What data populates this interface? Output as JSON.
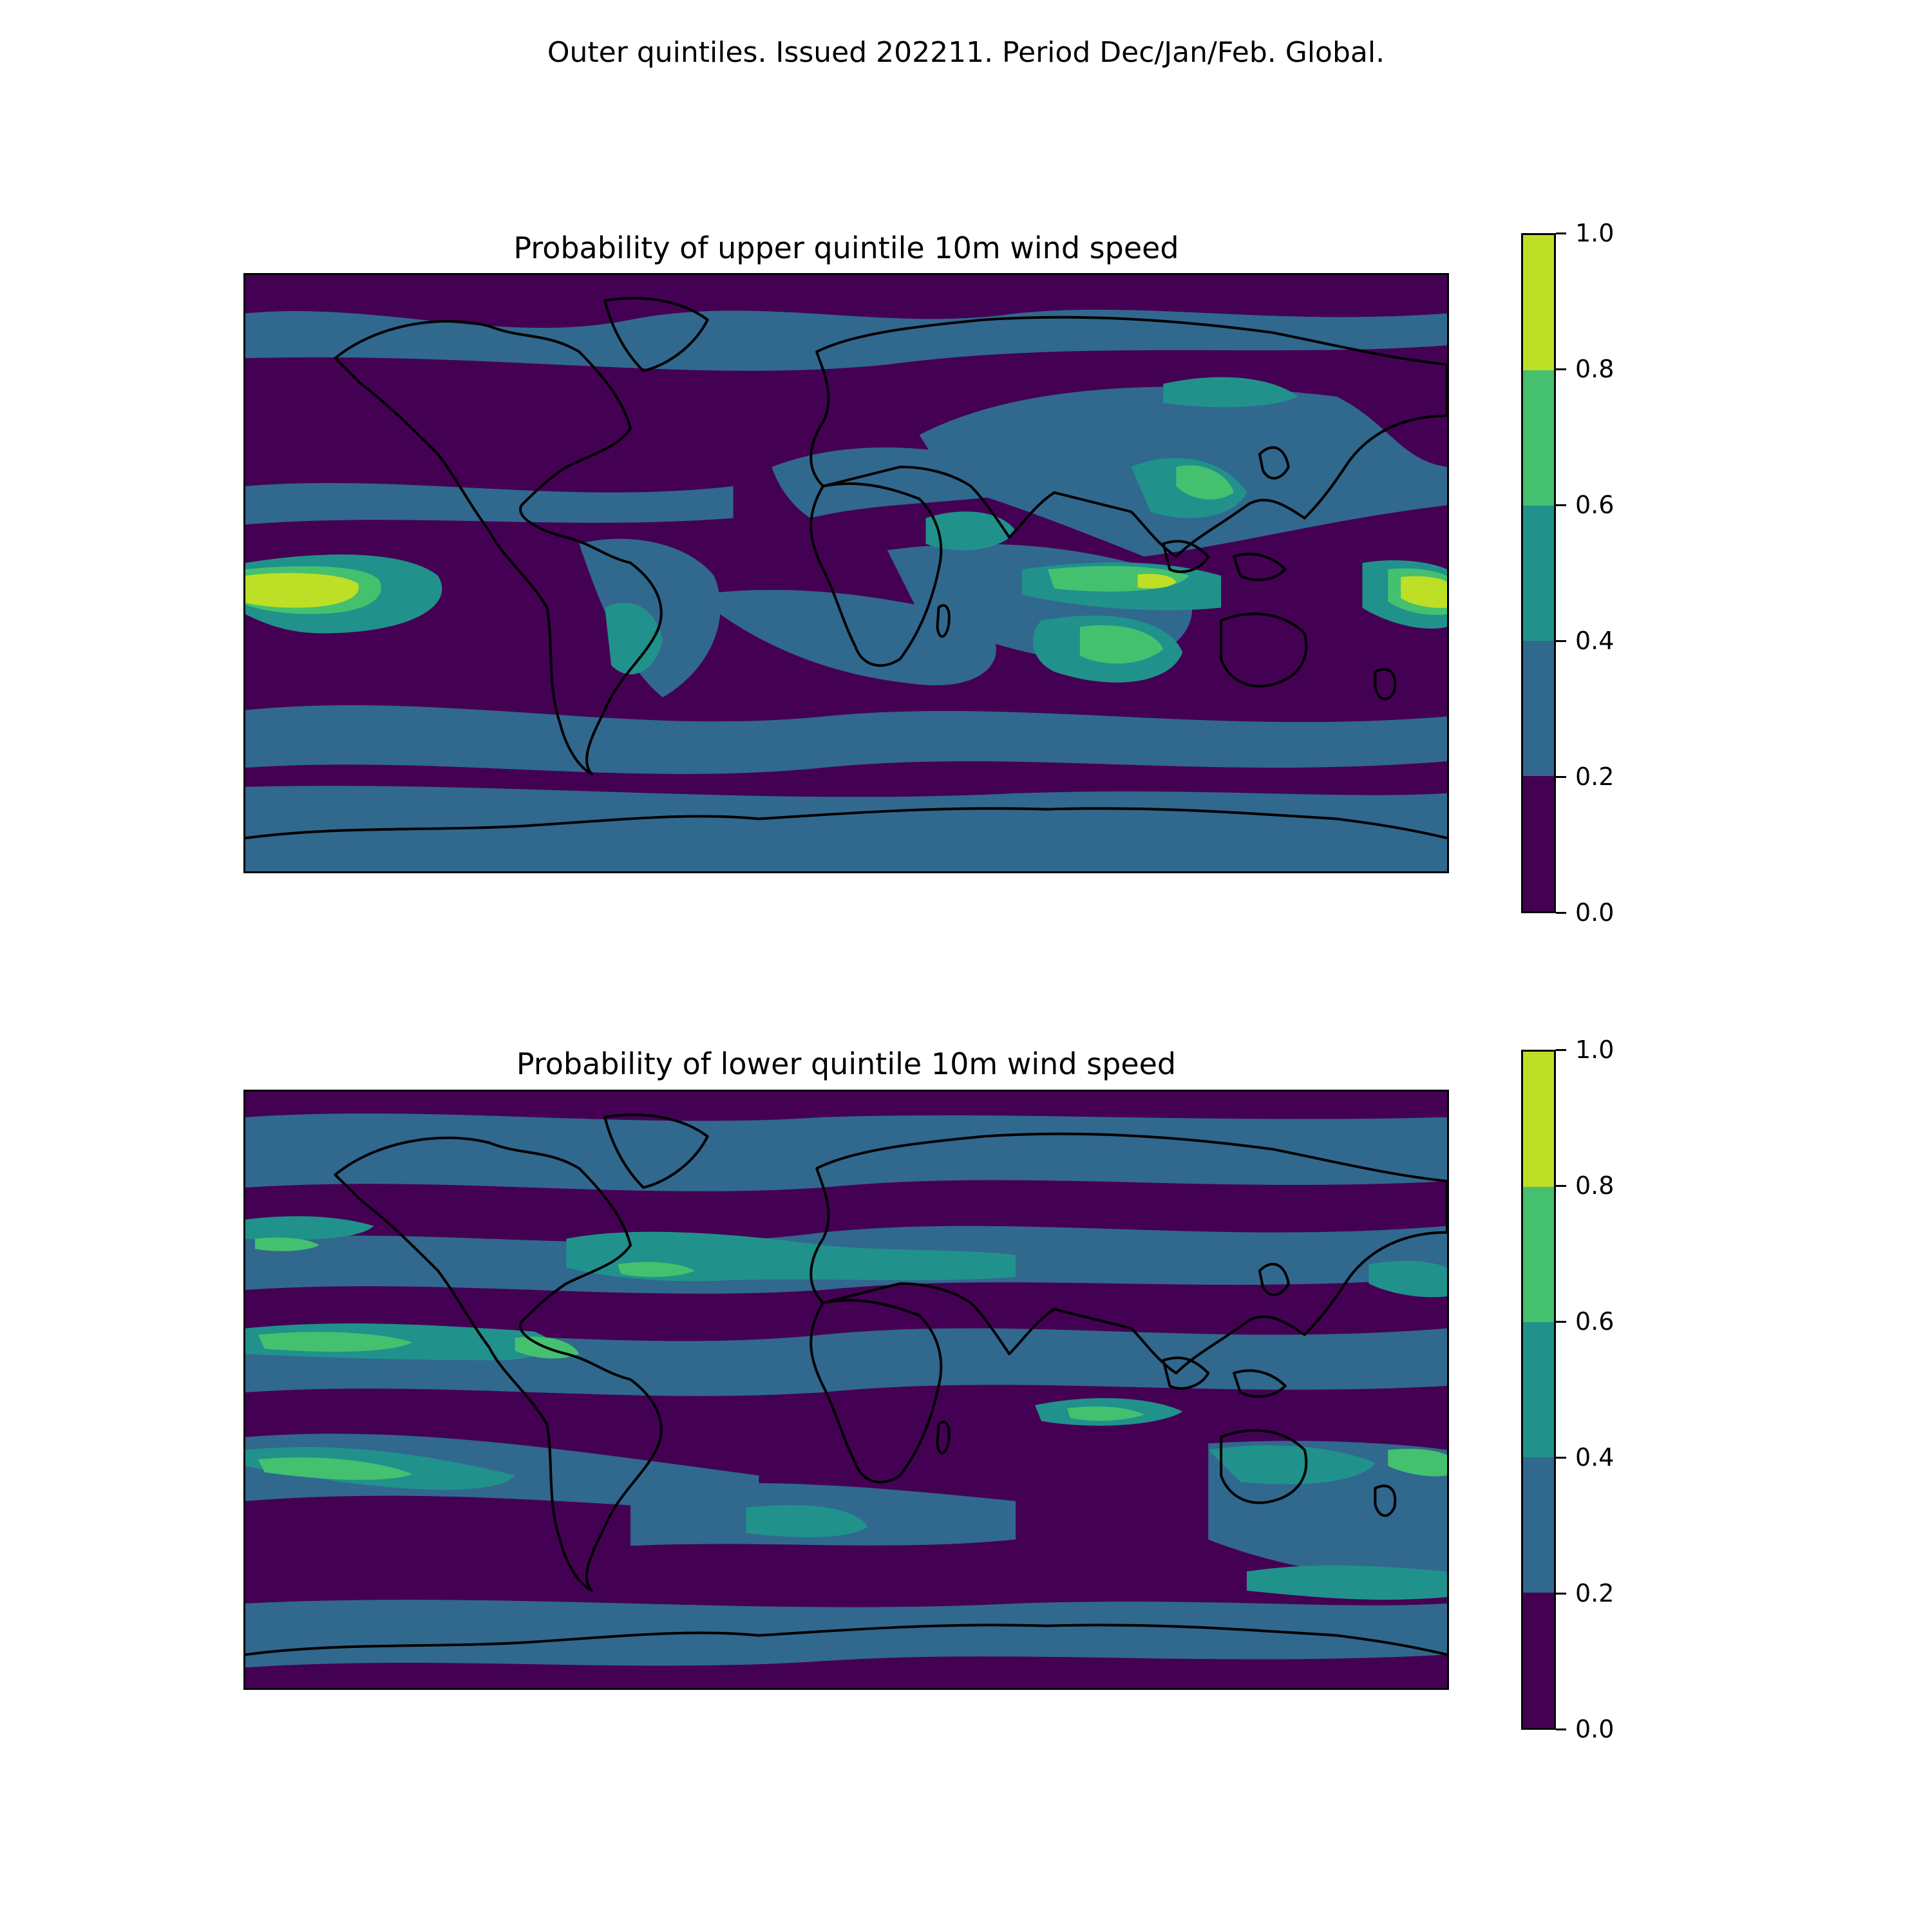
{
  "suptitle": "Outer quintiles. Issued 202211. Period Dec/Jan/Feb. Global.",
  "colormap": {
    "levels": [
      0.0,
      0.2,
      0.4,
      0.6,
      0.8,
      1.0
    ],
    "colors": [
      "#440154",
      "#31688e",
      "#21918c",
      "#45c06f",
      "#bddf26"
    ]
  },
  "panels": [
    {
      "title": "Probability of upper quintile 10m wind speed",
      "colorbar_ticks": [
        "0.0",
        "0.2",
        "0.4",
        "0.6",
        "0.8",
        "1.0"
      ]
    },
    {
      "title": "Probability of lower quintile 10m wind speed",
      "colorbar_ticks": [
        "0.0",
        "0.2",
        "0.4",
        "0.6",
        "0.8",
        "1.0"
      ]
    }
  ]
}
